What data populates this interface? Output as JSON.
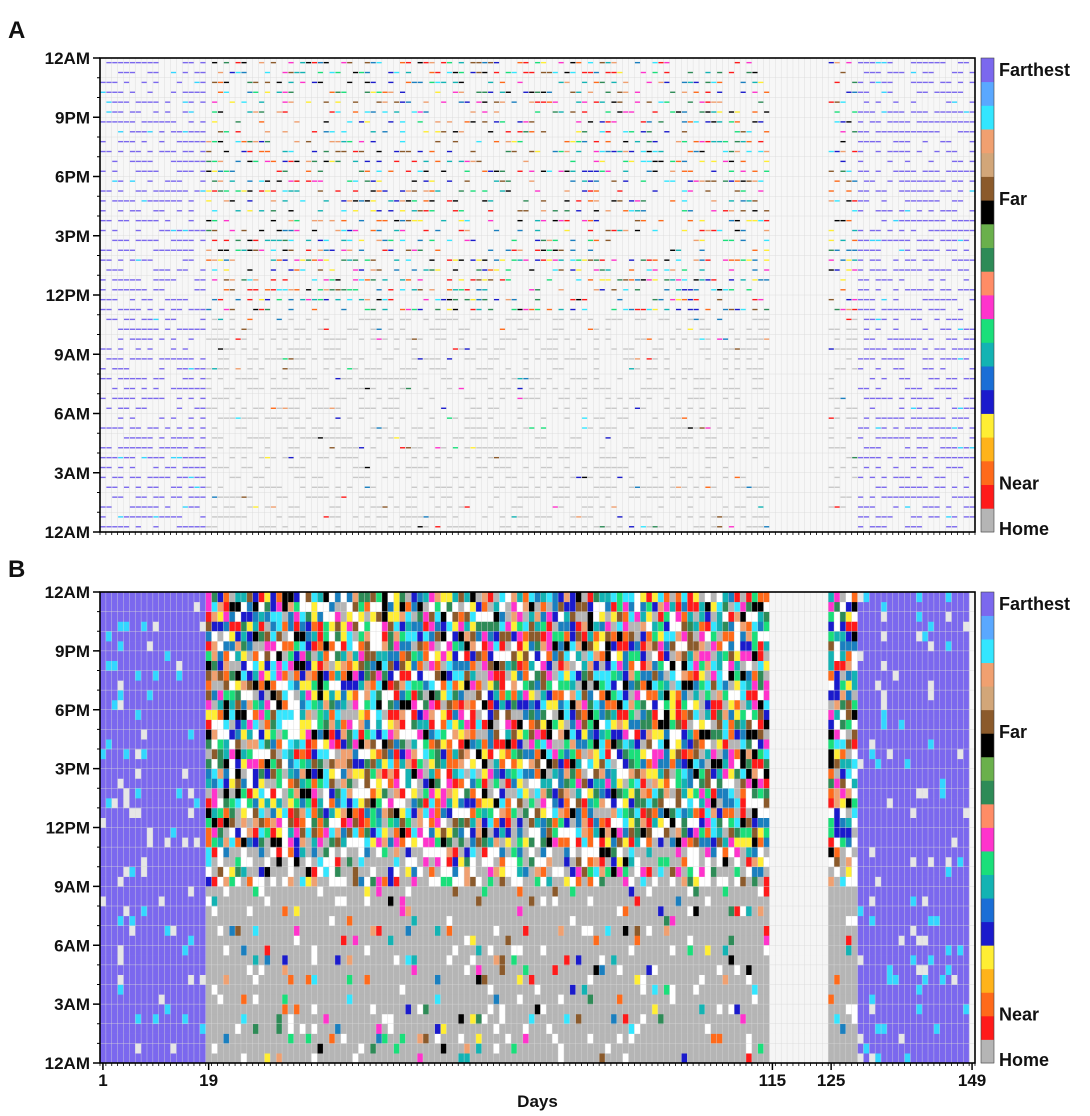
{
  "chart_data": [
    {
      "panel": "A",
      "type": "heatmap",
      "style": "sparse",
      "x_days": [
        1,
        149
      ],
      "y_ticks": [
        "12AM",
        "3AM",
        "6AM",
        "9AM",
        "12PM",
        "3PM",
        "6PM",
        "9PM",
        "12AM"
      ],
      "colorbar_labels": [
        "Farthest",
        "Far",
        "Near",
        "Home"
      ],
      "grid": true
    },
    {
      "panel": "B",
      "type": "heatmap",
      "style": "dense",
      "x_days": [
        1,
        149
      ],
      "x_ticks": [
        "1",
        "19",
        "115",
        "125",
        "149"
      ],
      "xlabel": "Days",
      "y_ticks": [
        "12AM",
        "3AM",
        "6AM",
        "9AM",
        "12PM",
        "3PM",
        "6PM",
        "9PM",
        "12AM"
      ],
      "colorbar_labels": [
        "Farthest",
        "Far",
        "Near",
        "Home"
      ],
      "grid": true,
      "regions": [
        {
          "from_day": 1,
          "to_day": 19,
          "category": "farthest"
        },
        {
          "from_day": 19,
          "to_day": 115,
          "category": "mixed"
        },
        {
          "from_day": 115,
          "to_day": 125,
          "category": "no-data"
        },
        {
          "from_day": 125,
          "to_day": 130,
          "category": "mixed"
        },
        {
          "from_day": 130,
          "to_day": 149,
          "category": "farthest"
        }
      ]
    }
  ],
  "colorbar_colors": [
    "#b5b5b5",
    "#ff1a1a",
    "#ff6a1a",
    "#ffb31a",
    "#ffee33",
    "#1a1acc",
    "#1a6ed6",
    "#13b3b3",
    "#1adf7a",
    "#ff33cc",
    "#ff8c66",
    "#2e8b57",
    "#6ab04c",
    "#000000",
    "#8b5a2b",
    "#d2a679",
    "#f0a070",
    "#33e6ff",
    "#5aa8ff",
    "#7b68ee"
  ],
  "category_colors": {
    "home": "#b5b5b5",
    "farthest": "#7b68ee",
    "mixed_palette": [
      "#1a7fbf",
      "#ff1a1a",
      "#ff6a1a",
      "#ff33cc",
      "#1adf7a",
      "#2e8b57",
      "#000000",
      "#8b5a2b",
      "#ffee33",
      "#1a1acc",
      "#13b3b3",
      "#33e6ff",
      "#f0a070"
    ]
  },
  "labels": {
    "panel_a": "A",
    "panel_b": "B"
  }
}
